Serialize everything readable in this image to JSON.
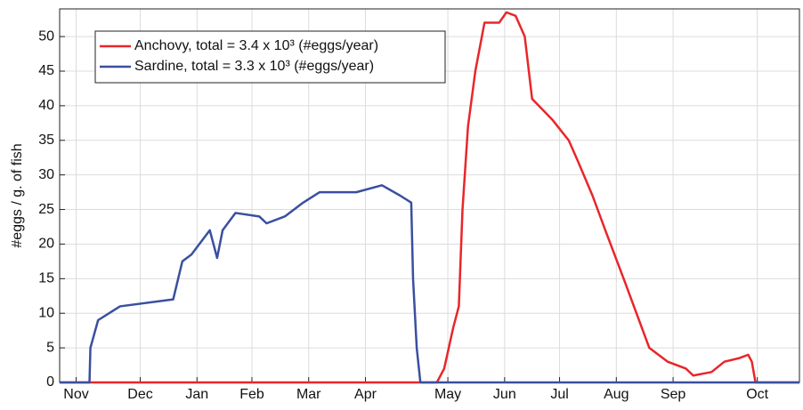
{
  "chart_data": {
    "type": "line",
    "y_label": "#eggs / g. of fish",
    "xlim": [
      -9,
      395
    ],
    "xticks": [
      {
        "value": 0,
        "label": "Nov"
      },
      {
        "value": 35,
        "label": "Dec"
      },
      {
        "value": 66,
        "label": "Jan"
      },
      {
        "value": 96,
        "label": "Feb"
      },
      {
        "value": 127,
        "label": "Mar"
      },
      {
        "value": 158,
        "label": "Apr"
      },
      {
        "value": 203,
        "label": "May"
      },
      {
        "value": 234,
        "label": "Jun"
      },
      {
        "value": 264,
        "label": "Jul"
      },
      {
        "value": 295,
        "label": "Aug"
      },
      {
        "value": 326,
        "label": "Sep"
      },
      {
        "value": 372,
        "label": "Oct"
      }
    ],
    "ylim": [
      0,
      54
    ],
    "yticks": [
      0,
      5,
      10,
      15,
      20,
      25,
      30,
      35,
      40,
      45,
      50
    ],
    "grid": true,
    "legend": "upper left",
    "series": [
      {
        "name": "Anchovy, total = 3.4 x 10³ (#eggs/year)",
        "color": "#e8262a",
        "x": [
          -9,
          197,
          201,
          206,
          209,
          211,
          214,
          218,
          223,
          231,
          235,
          240,
          245,
          249,
          260,
          269,
          274,
          282,
          289,
          299,
          306,
          313,
          323,
          333,
          337,
          347,
          354,
          362,
          367,
          369,
          371,
          395
        ],
        "values": [
          0,
          0,
          2,
          8,
          11,
          25,
          37,
          45,
          52,
          52,
          53.5,
          53,
          50,
          41,
          38,
          35,
          32,
          27,
          22,
          15,
          10,
          5,
          3,
          2,
          1,
          1.5,
          3,
          3.5,
          4,
          3,
          0,
          0
        ]
      },
      {
        "name": "Sardine, total = 3.3 x 10³ (#eggs/year)",
        "color": "#3a4fa0",
        "x": [
          -9,
          7.3,
          7.8,
          12,
          24,
          53,
          58,
          63,
          73,
          77,
          80,
          87,
          100,
          104,
          114,
          124,
          133,
          153,
          167,
          177,
          183,
          184,
          186,
          188,
          395
        ],
        "values": [
          0,
          0,
          5,
          9,
          11,
          12,
          17.5,
          18.5,
          22,
          18,
          22,
          24.5,
          24,
          23,
          24,
          26,
          27.5,
          27.5,
          28.5,
          27,
          26,
          15,
          5,
          0,
          0
        ]
      }
    ]
  }
}
